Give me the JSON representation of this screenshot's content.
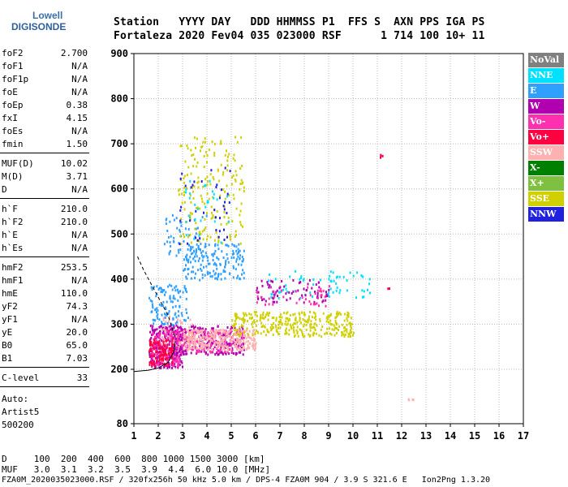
{
  "logo": {
    "line1": "Lowell",
    "line2": "DIGISONDE"
  },
  "header": {
    "line1": "Station   YYYY DAY   DDD HHMMSS P1  FFS S  AXN PPS IGA PS",
    "line2": "Fortaleza 2020 Fev04 035 023000 RSF      1 714 100 10+ 11"
  },
  "params": [
    {
      "label": "foF2",
      "value": "2.700"
    },
    {
      "label": "foF1",
      "value": "N/A"
    },
    {
      "label": "foF1p",
      "value": "N/A"
    },
    {
      "label": "foE",
      "value": "N/A"
    },
    {
      "label": "foEp",
      "value": "0.38"
    },
    {
      "label": "fxI",
      "value": "4.15"
    },
    {
      "label": "foEs",
      "value": "N/A"
    },
    {
      "label": "fmin",
      "value": "1.50"
    },
    {
      "label": "MUF(D)",
      "value": "10.02"
    },
    {
      "label": "M(D)",
      "value": "3.71"
    },
    {
      "label": "D",
      "value": "N/A"
    },
    {
      "label": "h`F",
      "value": "210.0"
    },
    {
      "label": "h`F2",
      "value": "210.0"
    },
    {
      "label": "h`E",
      "value": "N/A"
    },
    {
      "label": "h`Es",
      "value": "N/A"
    },
    {
      "label": "hmF2",
      "value": "253.5"
    },
    {
      "label": "hmF1",
      "value": "N/A"
    },
    {
      "label": "hmE",
      "value": "110.0"
    },
    {
      "label": "yF2",
      "value": "74.3"
    },
    {
      "label": "yF1",
      "value": "N/A"
    },
    {
      "label": "yE",
      "value": "20.0"
    },
    {
      "label": "B0",
      "value": "65.0"
    },
    {
      "label": "B1",
      "value": "7.03"
    },
    {
      "label": "C-level",
      "value": "33"
    },
    {
      "label": "Auto:",
      "value": ""
    },
    {
      "label": "Artist5",
      "value": ""
    },
    {
      "label": "500200",
      "value": ""
    }
  ],
  "legend": [
    {
      "label": "NoVal",
      "color": "#808080"
    },
    {
      "label": "NNE",
      "color": "#00e0ff"
    },
    {
      "label": "E",
      "color": "#30a0ff"
    },
    {
      "label": "W",
      "color": "#b000b0"
    },
    {
      "label": "Vo-",
      "color": "#ff30b0"
    },
    {
      "label": "Vo+",
      "color": "#ff0040"
    },
    {
      "label": "SSW",
      "color": "#ffb0b0"
    },
    {
      "label": "X-",
      "color": "#008000"
    },
    {
      "label": "X+",
      "color": "#80c040"
    },
    {
      "label": "SSE",
      "color": "#d0d000"
    },
    {
      "label": "NNW",
      "color": "#2020e0"
    }
  ],
  "footer": {
    "d_row": "D     100  200  400  600  800 1000 1500 3000 [km]",
    "muf_row": "MUF   3.0  3.1  3.2  3.5  3.9  4.4  6.0 10.0 [MHz]",
    "file_row": "FZA0M_2020035023000.RSF / 320fx256h 50 kHz 5.0 km / DPS-4 FZA0M 904 / 3.9 S 321.6 E   Ion2Png 1.3.20"
  },
  "chart_data": {
    "type": "scatter",
    "xlim": [
      1,
      17
    ],
    "ylim": [
      80,
      900
    ],
    "x_ticks": [
      "1",
      "2",
      "3",
      "4",
      "5",
      "6",
      "7",
      "8",
      "9",
      "10",
      "11",
      "12",
      "13",
      "14",
      "15",
      "16",
      "17"
    ],
    "y_ticks": [
      "80",
      "200",
      "300",
      "400",
      "500",
      "600",
      "700",
      "800",
      "900"
    ],
    "grid": true,
    "legend_position": "right",
    "clusters": [
      {
        "series": "W",
        "x": [
          1.6,
          3.0
        ],
        "y": [
          205,
          300
        ],
        "n": 260
      },
      {
        "series": "Vo-",
        "x": [
          1.7,
          2.9
        ],
        "y": [
          210,
          290
        ],
        "n": 160
      },
      {
        "series": "Vo+",
        "x": [
          1.6,
          2.6
        ],
        "y": [
          210,
          270
        ],
        "n": 110
      },
      {
        "series": "W",
        "x": [
          2.6,
          5.5
        ],
        "y": [
          235,
          300
        ],
        "n": 260
      },
      {
        "series": "Vo-",
        "x": [
          2.6,
          5.5
        ],
        "y": [
          240,
          290
        ],
        "n": 150
      },
      {
        "series": "SSW",
        "x": [
          3.0,
          6.0
        ],
        "y": [
          245,
          290
        ],
        "n": 280
      },
      {
        "series": "SSE",
        "x": [
          5.0,
          10.0
        ],
        "y": [
          275,
          330
        ],
        "n": 320
      },
      {
        "series": "SSW",
        "x": [
          2.0,
          3.5
        ],
        "y": [
          250,
          320
        ],
        "n": 50
      },
      {
        "series": "E",
        "x": [
          1.6,
          3.2
        ],
        "y": [
          300,
          390
        ],
        "n": 110
      },
      {
        "series": "E",
        "x": [
          3.0,
          5.5
        ],
        "y": [
          400,
          480
        ],
        "n": 170
      },
      {
        "series": "E",
        "x": [
          2.2,
          4.0
        ],
        "y": [
          440,
          550
        ],
        "n": 60
      },
      {
        "series": "NNE",
        "x": [
          6.5,
          10.7
        ],
        "y": [
          360,
          420
        ],
        "n": 70
      },
      {
        "series": "W",
        "x": [
          6.0,
          9.0
        ],
        "y": [
          350,
          400
        ],
        "n": 70
      },
      {
        "series": "Vo-",
        "x": [
          6.0,
          9.0
        ],
        "y": [
          340,
          390
        ],
        "n": 40
      },
      {
        "series": "SSE",
        "x": [
          2.8,
          5.5
        ],
        "y": [
          480,
          720
        ],
        "n": 190
      },
      {
        "series": "NNW",
        "x": [
          2.8,
          5.0
        ],
        "y": [
          480,
          660
        ],
        "n": 40
      },
      {
        "series": "NNE",
        "x": [
          3.0,
          5.0
        ],
        "y": [
          480,
          620
        ],
        "n": 30
      },
      {
        "series": "Vo+",
        "x": [
          11.1,
          11.2
        ],
        "y": [
          670,
          678
        ],
        "n": 4
      },
      {
        "series": "SSW",
        "x": [
          12.2,
          12.5
        ],
        "y": [
          134,
          137
        ],
        "n": 4
      },
      {
        "series": "Vo+",
        "x": [
          11.4,
          11.5
        ],
        "y": [
          378,
          382
        ],
        "n": 2
      }
    ],
    "curves": [
      {
        "name": "profile",
        "x": [
          1.0,
          1.6,
          2.0,
          2.4,
          2.65,
          2.7
        ],
        "y": [
          195,
          198,
          203,
          215,
          240,
          262
        ]
      },
      {
        "name": "trace",
        "x": [
          1.15,
          1.4,
          1.8,
          2.4,
          2.7
        ],
        "y": [
          450,
          420,
          380,
          320,
          270
        ],
        "dashed": true
      }
    ]
  }
}
